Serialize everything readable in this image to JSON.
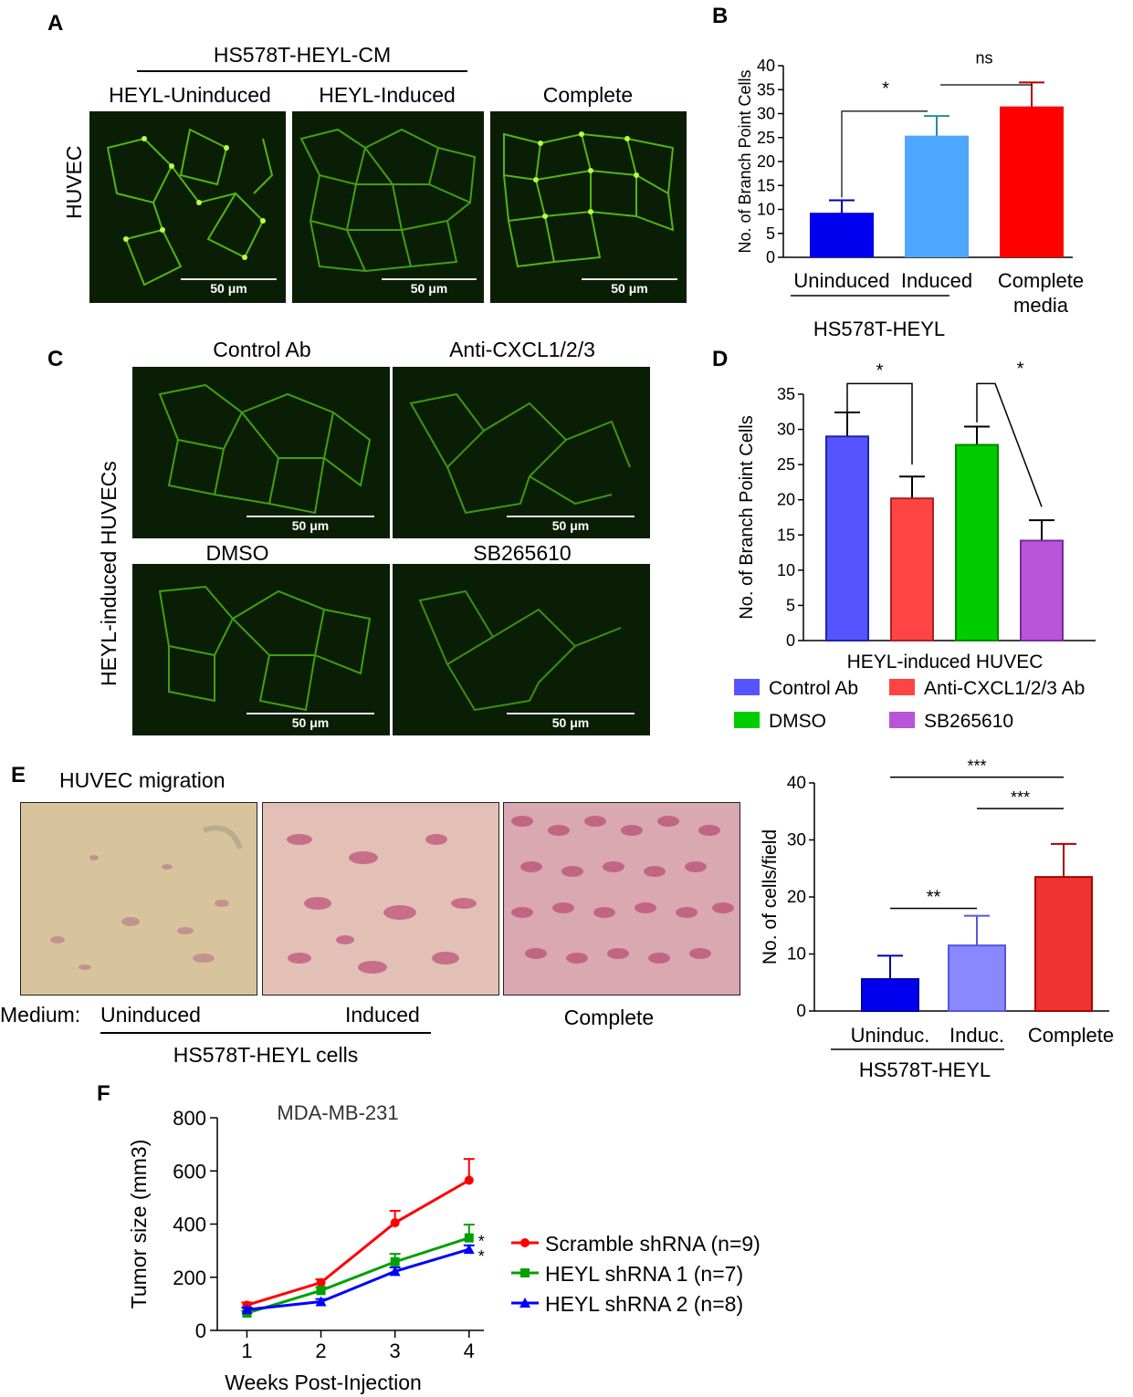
{
  "panels": {
    "A": {
      "letter": "A",
      "group_title": "HS578T-HEYL-CM",
      "row_label": "HUVEC",
      "columns": [
        "HEYL-Uninduced",
        "HEYL-Induced",
        "Complete"
      ],
      "scale_bars": [
        "50 μm",
        "50 μm",
        "50 μm"
      ]
    },
    "C": {
      "letter": "C",
      "row_label": "HEYL-induced HUVECs",
      "titles": [
        "Control Ab",
        "Anti-CXCL1/2/3",
        "DMSO",
        "SB265610"
      ],
      "scale_bars": [
        "50 μm",
        "50 μm",
        "50 μm",
        "50 μm"
      ]
    },
    "E": {
      "letter": "E",
      "title": "HUVEC migration",
      "medium_label": "Medium:",
      "labels": [
        "Uninduced",
        "Induced",
        "Complete"
      ],
      "group_label": "HS578T-HEYL cells"
    },
    "B_letter": "B",
    "D_letter": "D",
    "F_letter": "F"
  },
  "chart_data": [
    {
      "id": "B",
      "type": "bar",
      "ylabel": "No. of Branch Point Cells",
      "ylim": [
        0,
        40
      ],
      "yticks": [
        0,
        5,
        10,
        15,
        20,
        25,
        30,
        35,
        40
      ],
      "categories": [
        "Uninduced",
        "Induced",
        "Complete media"
      ],
      "category_lines": [
        [
          "Uninduced"
        ],
        [
          "Induced"
        ],
        [
          "Complete",
          "media"
        ]
      ],
      "values": [
        9.3,
        25.4,
        31.5
      ],
      "errors": [
        2.6,
        4.1,
        5.0
      ],
      "colors": [
        "#0000ee",
        "#4da6ff",
        "#ff0000"
      ],
      "group_label": "HS578T-HEYL",
      "significance": [
        {
          "from": 0,
          "to": 1,
          "label": "*"
        },
        {
          "from": 1,
          "to": 2,
          "label": "ns"
        }
      ]
    },
    {
      "id": "D",
      "type": "bar",
      "ylabel": "No. of Branch Point Cells",
      "xlabel": "HEYL-induced HUVEC",
      "ylim": [
        0,
        35
      ],
      "yticks": [
        0,
        5,
        10,
        15,
        20,
        25,
        30,
        35
      ],
      "categories": [
        "Control Ab",
        "Anti-CXCL1/2/3 Ab",
        "DMSO",
        "SB265610"
      ],
      "values": [
        29.0,
        20.2,
        27.8,
        14.2
      ],
      "errors": [
        3.4,
        3.1,
        2.6,
        2.9
      ],
      "colors": [
        "#5555ff",
        "#ff4444",
        "#00cc00",
        "#b855d9"
      ],
      "significance": [
        {
          "from": 0,
          "to": 1,
          "label": "*"
        },
        {
          "from": 2,
          "to": 3,
          "label": "*"
        }
      ]
    },
    {
      "id": "E",
      "type": "bar",
      "ylabel": "No. of cells/field",
      "ylim": [
        0,
        40
      ],
      "yticks": [
        0,
        10,
        20,
        30,
        40
      ],
      "categories": [
        "Uninduc.",
        "Induc.",
        "Complete"
      ],
      "values": [
        5.6,
        11.5,
        23.5
      ],
      "errors": [
        4.1,
        5.2,
        5.8
      ],
      "colors": [
        "#0000ee",
        "#8888ff",
        "#ee3333"
      ],
      "group_label": "HS578T-HEYL",
      "significance": [
        {
          "from": 0,
          "to": 1,
          "label": "**"
        },
        {
          "from": 1,
          "to": 2,
          "label": "***"
        },
        {
          "from": 0,
          "to": 2,
          "label": "***"
        }
      ]
    },
    {
      "id": "F",
      "type": "line",
      "title": "MDA-MB-231",
      "xlabel": "Weeks Post-Injection",
      "ylabel": "Tumor size (mm3)",
      "x": [
        1,
        2,
        3,
        4
      ],
      "xlim": [
        0.6,
        4.2
      ],
      "ylim": [
        0,
        800
      ],
      "yticks": [
        0,
        200,
        400,
        600,
        800
      ],
      "series": [
        {
          "name": "Scramble shRNA (n=9)",
          "values": [
            95,
            180,
            405,
            565
          ],
          "errors": [
            10,
            12,
            45,
            80
          ],
          "color": "#ff0000",
          "marker": "circle"
        },
        {
          "name": "HEYL shRNA 1  (n=7)",
          "values": [
            65,
            150,
            258,
            348
          ],
          "errors": [
            8,
            12,
            30,
            50
          ],
          "color": "#00a000",
          "marker": "square"
        },
        {
          "name": "HEYL shRNA 2  (n=8)",
          "values": [
            78,
            108,
            222,
            305
          ],
          "errors": [
            8,
            10,
            15,
            15
          ],
          "color": "#0000ff",
          "marker": "triangle"
        }
      ],
      "annotations": [
        "*",
        "*"
      ]
    }
  ]
}
